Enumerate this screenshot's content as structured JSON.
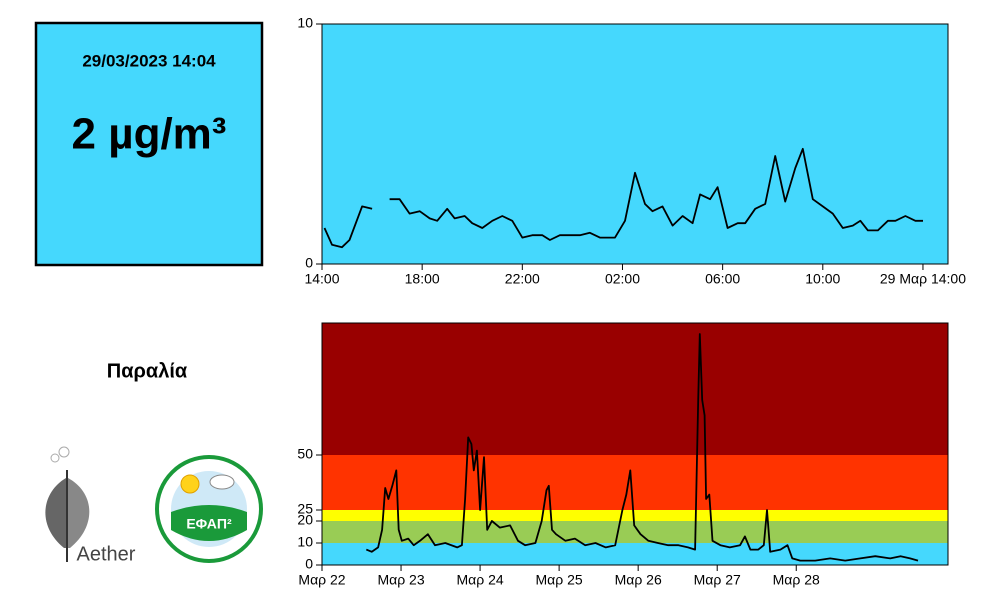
{
  "info": {
    "date": "29/03/2023 14:04",
    "value": "2 µg/m³",
    "station": "Παραλία"
  },
  "logos": {
    "aether": "Aether",
    "efap": "ΕΦΑΠ²"
  },
  "chart_data": [
    {
      "type": "line",
      "color": "#000000",
      "background": "#45d8fd",
      "xlim": [
        0,
        25
      ],
      "xticks": [
        {
          "value": 0,
          "label": "14:00"
        },
        {
          "value": 4,
          "label": "18:00"
        },
        {
          "value": 8,
          "label": "22:00"
        },
        {
          "value": 12,
          "label": "02:00"
        },
        {
          "value": 16,
          "label": "06:00"
        },
        {
          "value": 20,
          "label": "10:00"
        },
        {
          "value": 24,
          "label": "29 Μαρ 14:00"
        }
      ],
      "ylim": [
        0,
        10
      ],
      "yticks": [
        0,
        10
      ],
      "x": [
        0.1,
        0.4,
        0.8,
        1.1,
        1.6,
        2.0,
        2.4,
        2.7,
        3.1,
        3.5,
        3.9,
        4.3,
        4.6,
        5.0,
        5.3,
        5.7,
        6.0,
        6.4,
        6.8,
        7.2,
        7.6,
        8.0,
        8.4,
        8.8,
        9.1,
        9.5,
        9.9,
        10.3,
        10.7,
        11.1,
        11.7,
        12.1,
        12.5,
        12.9,
        13.2,
        13.6,
        14.0,
        14.4,
        14.8,
        15.1,
        15.5,
        15.8,
        16.2,
        16.6,
        16.9,
        17.3,
        17.7,
        18.1,
        18.5,
        18.9,
        19.2,
        19.6,
        20.0,
        20.4,
        20.8,
        21.2,
        21.5,
        21.8,
        22.2,
        22.6,
        22.9,
        23.3,
        23.7,
        24.0
      ],
      "values": [
        1.5,
        0.8,
        0.7,
        1.0,
        2.4,
        2.3,
        null,
        2.7,
        2.7,
        2.1,
        2.2,
        1.9,
        1.8,
        2.3,
        1.9,
        2.0,
        1.7,
        1.5,
        1.8,
        2.0,
        1.8,
        1.1,
        1.2,
        1.2,
        1.0,
        1.2,
        1.2,
        1.2,
        1.3,
        1.1,
        1.1,
        1.8,
        3.8,
        2.5,
        2.2,
        2.4,
        1.6,
        2.0,
        1.7,
        2.9,
        2.7,
        3.2,
        1.5,
        1.7,
        1.7,
        2.3,
        2.5,
        4.5,
        2.6,
        4.0,
        4.8,
        2.7,
        2.4,
        2.1,
        1.5,
        1.6,
        1.8,
        1.4,
        1.4,
        1.8,
        1.8,
        2.0,
        1.8,
        1.8
      ]
    },
    {
      "type": "line",
      "color": "#000000",
      "bands": [
        {
          "from": 0,
          "to": 10,
          "color": "#45d8fd"
        },
        {
          "from": 10,
          "to": 20,
          "color": "#99cc55"
        },
        {
          "from": 20,
          "to": 25,
          "color": "#ffff00"
        },
        {
          "from": 25,
          "to": 50,
          "color": "#ff3300"
        },
        {
          "from": 50,
          "to": 110,
          "color": "#990000"
        }
      ],
      "xlim": [
        0,
        7.92
      ],
      "xticks": [
        {
          "value": 0,
          "label": "Μαρ 22"
        },
        {
          "value": 1,
          "label": "Μαρ 23"
        },
        {
          "value": 2,
          "label": "Μαρ 24"
        },
        {
          "value": 3,
          "label": "Μαρ 25"
        },
        {
          "value": 4,
          "label": "Μαρ 26"
        },
        {
          "value": 5,
          "label": "Μαρ 27"
        },
        {
          "value": 6,
          "label": "Μαρ 28"
        }
      ],
      "ylim": [
        0,
        110
      ],
      "yticks": [
        0,
        10,
        20,
        25,
        50
      ],
      "x": [
        0.56,
        0.63,
        0.71,
        0.76,
        0.8,
        0.84,
        0.89,
        0.94,
        0.97,
        1.01,
        1.09,
        1.16,
        1.24,
        1.34,
        1.43,
        1.56,
        1.71,
        1.77,
        1.81,
        1.85,
        1.89,
        1.92,
        1.96,
        2.0,
        2.05,
        2.09,
        2.15,
        2.25,
        2.38,
        2.48,
        2.57,
        2.7,
        2.78,
        2.84,
        2.87,
        2.91,
        2.96,
        3.08,
        3.2,
        3.33,
        3.46,
        3.59,
        3.71,
        3.8,
        3.85,
        3.9,
        3.95,
        4.03,
        4.13,
        4.25,
        4.38,
        4.51,
        4.63,
        4.72,
        4.76,
        4.78,
        4.81,
        4.84,
        4.86,
        4.9,
        4.94,
        5.04,
        5.16,
        5.29,
        5.35,
        5.42,
        5.52,
        5.59,
        5.63,
        5.67,
        5.8,
        5.89,
        5.95,
        6.05,
        6.24,
        6.43,
        6.62,
        6.81,
        7.0,
        7.19,
        7.32,
        7.44,
        7.54
      ],
      "values": [
        7,
        6,
        8,
        16,
        35,
        30,
        36,
        43,
        16,
        11,
        12,
        9,
        11,
        14,
        9,
        10,
        8,
        9,
        30,
        58,
        55,
        43,
        52,
        25,
        49,
        16,
        20,
        17,
        18,
        11,
        9,
        10,
        20,
        34,
        36,
        16,
        14,
        11,
        12,
        9,
        10,
        8,
        9,
        25,
        32,
        43,
        18,
        14,
        11,
        10,
        9,
        9,
        8,
        7,
        75,
        105,
        75,
        68,
        30,
        32,
        11,
        9,
        8,
        9,
        13,
        7,
        7,
        9,
        25,
        6,
        7,
        9,
        3,
        2,
        2,
        3,
        2,
        3,
        4,
        3,
        4,
        3,
        2
      ]
    }
  ]
}
